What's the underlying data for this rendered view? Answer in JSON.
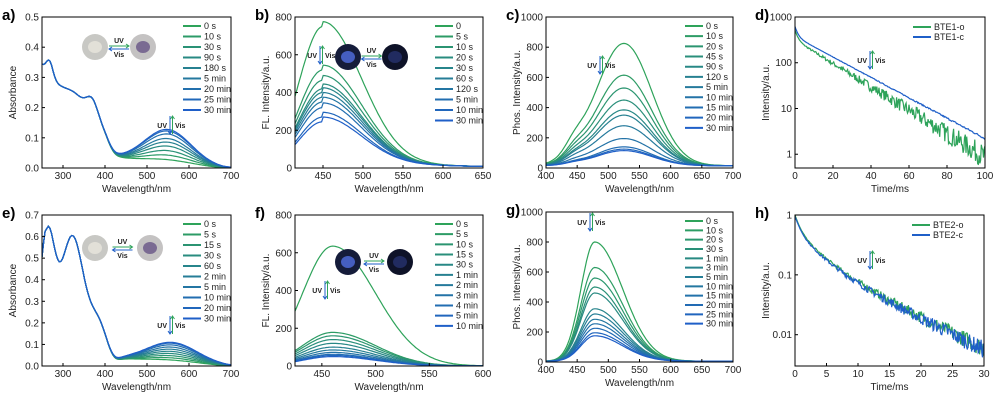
{
  "chart_data": [
    {
      "id": "a",
      "panel_label": "a)",
      "type": "line",
      "xlabel": "Wavelength/nm",
      "ylabel": "Absorbance",
      "xlim": [
        250,
        700
      ],
      "ylim": [
        0,
        0.5
      ],
      "yscale": "linear",
      "xticks": [
        300,
        400,
        500,
        600,
        700
      ],
      "xtick_labels": [
        "300",
        "400",
        "500",
        "600",
        "700"
      ],
      "yticks": [
        0,
        0.1,
        0.2,
        0.3,
        0.4,
        0.5
      ],
      "ytick_labels": [
        "0.0",
        "0.1",
        "0.2",
        "0.3",
        "0.4",
        "0.5"
      ],
      "legend": [
        "0 s",
        "10 s",
        "30 s",
        "90 s",
        "180 s",
        "5 min",
        "20 min",
        "25 min",
        "30 min"
      ],
      "legend_position": "top-right",
      "model": "abs1",
      "series_param": [
        0.01,
        0.025,
        0.04,
        0.055,
        0.068,
        0.08,
        0.095,
        0.105,
        0.11
      ],
      "annotations": {
        "uv": "UV",
        "vis": "Vis",
        "inset": "photo crystals UV/Vis"
      }
    },
    {
      "id": "b",
      "panel_label": "b)",
      "type": "line",
      "xlabel": "Wavelength/nm",
      "ylabel": "FL. Intensity/a.u.",
      "xlim": [
        415,
        650
      ],
      "ylim": [
        0,
        800
      ],
      "yscale": "linear",
      "xticks": [
        450,
        500,
        550,
        600,
        650
      ],
      "xtick_labels": [
        "450",
        "500",
        "550",
        "600",
        "650"
      ],
      "yticks": [
        0,
        200,
        400,
        600,
        800
      ],
      "ytick_labels": [
        "0",
        "200",
        "400",
        "600",
        "800"
      ],
      "legend": [
        "0",
        "5 s",
        "10 s",
        "20 s",
        "30 s",
        "60 s",
        "120 s",
        "5 min",
        "10 min",
        "30 min"
      ],
      "legend_position": "top-right",
      "model": "fl1",
      "series_param": [
        750,
        520,
        465,
        420,
        400,
        375,
        350,
        320,
        270,
        245
      ],
      "annotations": {
        "uv": "UV",
        "vis": "Vis"
      }
    },
    {
      "id": "c",
      "panel_label": "c)",
      "type": "line",
      "xlabel": "Wavelength/nm",
      "ylabel": "Phos. Intensity/a.u.",
      "xlim": [
        400,
        700
      ],
      "ylim": [
        0,
        1000
      ],
      "yscale": "linear",
      "xticks": [
        400,
        450,
        500,
        550,
        600,
        650,
        700
      ],
      "xtick_labels": [
        "400",
        "450",
        "500",
        "550",
        "600",
        "650",
        "700"
      ],
      "yticks": [
        0,
        200,
        400,
        600,
        800,
        1000
      ],
      "ytick_labels": [
        "0",
        "200",
        "400",
        "600",
        "800",
        "1000"
      ],
      "legend": [
        "0 s",
        "10 s",
        "20 s",
        "45 s",
        "90 s",
        "120 s",
        "5 min",
        "10 min",
        "15 min",
        "20 min",
        "30 min"
      ],
      "legend_position": "top-right",
      "model": "ph1",
      "series_param": [
        810,
        600,
        515,
        435,
        370,
        335,
        265,
        180,
        125,
        110,
        100
      ],
      "annotations": {
        "uv": "UV",
        "vis": "Vis"
      }
    },
    {
      "id": "d",
      "panel_label": "d)",
      "type": "line",
      "xlabel": "Time/ms",
      "ylabel": "Intensity/a.u.",
      "xlim": [
        0,
        100
      ],
      "ylim": [
        0.5,
        1000
      ],
      "yscale": "log",
      "xticks": [
        0,
        20,
        40,
        60,
        80,
        100
      ],
      "xtick_labels": [
        "0",
        "20",
        "40",
        "60",
        "80",
        "100"
      ],
      "yticks": [
        1,
        10,
        100,
        1000
      ],
      "ytick_labels": [
        "1",
        "10",
        "100",
        "1000"
      ],
      "legend": [
        "BTE1-o",
        "BTE1-c"
      ],
      "legend_position": "top-right",
      "model": "decay1",
      "series_param": [
        0,
        1
      ],
      "annotations": {
        "uv": "UV",
        "vis": "Vis"
      }
    },
    {
      "id": "e",
      "panel_label": "e)",
      "type": "line",
      "xlabel": "Wavelength/nm",
      "ylabel": "Absorbance",
      "xlim": [
        250,
        700
      ],
      "ylim": [
        0,
        0.7
      ],
      "yscale": "linear",
      "xticks": [
        300,
        400,
        500,
        600,
        700
      ],
      "xtick_labels": [
        "300",
        "400",
        "500",
        "600",
        "700"
      ],
      "yticks": [
        0,
        0.1,
        0.2,
        0.3,
        0.4,
        0.5,
        0.6,
        0.7
      ],
      "ytick_labels": [
        "0.0",
        "0.1",
        "0.2",
        "0.3",
        "0.4",
        "0.5",
        "0.6",
        "0.7"
      ],
      "legend": [
        "0 s",
        "5 s",
        "15 s",
        "30 s",
        "60 s",
        "2 min",
        "5 min",
        "10 min",
        "20 min",
        "30 min"
      ],
      "legend_position": "top-right",
      "model": "abs2",
      "series_param": [
        0.01,
        0.02,
        0.03,
        0.04,
        0.05,
        0.06,
        0.07,
        0.08,
        0.088,
        0.092
      ],
      "annotations": {
        "uv": "UV",
        "vis": "Vis"
      }
    },
    {
      "id": "f",
      "panel_label": "f)",
      "type": "line",
      "xlabel": "Wavelength/nm",
      "ylabel": "FL. Intensity/a.u.",
      "xlim": [
        425,
        600
      ],
      "ylim": [
        0,
        800
      ],
      "yscale": "linear",
      "xticks": [
        450,
        500,
        550,
        600
      ],
      "xtick_labels": [
        "450",
        "500",
        "550",
        "600"
      ],
      "yticks": [
        0,
        200,
        400,
        600,
        800
      ],
      "ytick_labels": [
        "0",
        "200",
        "400",
        "600",
        "800"
      ],
      "legend": [
        "0 s",
        "5 s",
        "10 s",
        "15 s",
        "30 s",
        "1 min",
        "2 min",
        "3 min",
        "4 min",
        "5 min",
        "10 min"
      ],
      "legend_position": "top-right",
      "model": "fl2",
      "series_param": [
        635,
        178,
        160,
        140,
        120,
        100,
        85,
        72,
        62,
        56,
        50
      ],
      "annotations": {
        "uv": "UV",
        "vis": "Vis"
      }
    },
    {
      "id": "g",
      "panel_label": "g)",
      "type": "line",
      "xlabel": "Wavelength/nm",
      "ylabel": "Phos. Intensity/a.u.",
      "xlim": [
        400,
        700
      ],
      "ylim": [
        0,
        1000
      ],
      "yscale": "linear",
      "xticks": [
        400,
        450,
        500,
        550,
        600,
        650,
        700
      ],
      "xtick_labels": [
        "400",
        "450",
        "500",
        "550",
        "600",
        "650",
        "700"
      ],
      "yticks": [
        0,
        200,
        400,
        600,
        800,
        1000
      ],
      "ytick_labels": [
        "0",
        "200",
        "400",
        "600",
        "800",
        "1000"
      ],
      "legend": [
        "0 s",
        "10 s",
        "20 s",
        "30 s",
        "1 min",
        "3 min",
        "5 min",
        "10 min",
        "15 min",
        "20 min",
        "25 min",
        "30 min"
      ],
      "legend_position": "top-right",
      "model": "ph2",
      "series_param": [
        795,
        625,
        555,
        495,
        455,
        350,
        315,
        280,
        250,
        220,
        190,
        170
      ],
      "annotations": {
        "uv": "UV",
        "vis": "Vis"
      }
    },
    {
      "id": "h",
      "panel_label": "h)",
      "type": "line",
      "xlabel": "Time/ms",
      "ylabel": "Intensity/a.u.",
      "xlim": [
        0,
        30
      ],
      "ylim": [
        0.003,
        1
      ],
      "yscale": "log",
      "xticks": [
        0,
        5,
        10,
        15,
        20,
        25,
        30
      ],
      "xtick_labels": [
        "0",
        "5",
        "10",
        "15",
        "20",
        "25",
        "30"
      ],
      "yticks": [
        0.01,
        0.1,
        1
      ],
      "ytick_labels": [
        "0.01",
        "0.1",
        "1"
      ],
      "legend": [
        "BTE2-o",
        "BTE2-c"
      ],
      "legend_position": "top-right",
      "model": "decay2",
      "series_param": [
        0,
        1
      ],
      "annotations": {
        "uv": "UV",
        "vis": "Vis"
      }
    }
  ],
  "colors": {
    "green": "#2ea35a",
    "blue": "#1f5fc8",
    "axis": "#000000"
  }
}
